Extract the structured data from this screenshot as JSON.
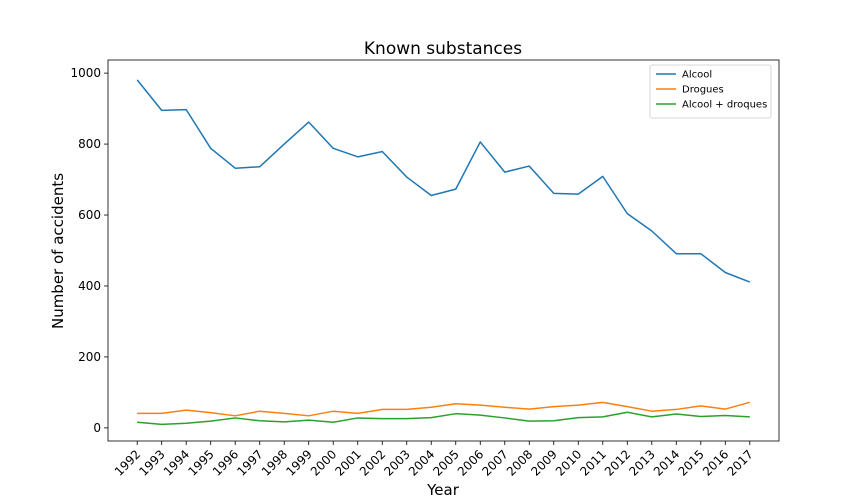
{
  "chart_data": {
    "type": "line",
    "title": "Known substances",
    "xlabel": "Year",
    "ylabel": "Number of accidents",
    "x": [
      1992,
      1993,
      1994,
      1995,
      1996,
      1997,
      1998,
      1999,
      2000,
      2001,
      2002,
      2003,
      2004,
      2005,
      2006,
      2007,
      2008,
      2009,
      2010,
      2011,
      2012,
      2013,
      2014,
      2015,
      2016,
      2017
    ],
    "ylim": [
      -37,
      1037
    ],
    "yticks": [
      0,
      200,
      400,
      600,
      800,
      1000
    ],
    "grid": false,
    "legend_position": "top-right",
    "series": [
      {
        "name": "Alcool",
        "color": "#1f77b4",
        "values": [
          981,
          895,
          897,
          788,
          732,
          736,
          800,
          862,
          788,
          764,
          779,
          707,
          655,
          673,
          806,
          721,
          738,
          661,
          659,
          709,
          604,
          555,
          491,
          491,
          438,
          411
        ]
      },
      {
        "name": "Drogues",
        "color": "#ff7f0e",
        "values": [
          41,
          41,
          50,
          43,
          34,
          47,
          41,
          34,
          47,
          41,
          52,
          52,
          58,
          68,
          64,
          58,
          53,
          60,
          64,
          72,
          60,
          47,
          52,
          62,
          53,
          72
        ]
      },
      {
        "name": "Alcool + droques",
        "color": "#2ca02c",
        "values": [
          16,
          10,
          13,
          19,
          28,
          20,
          17,
          22,
          16,
          28,
          26,
          26,
          29,
          40,
          36,
          28,
          19,
          20,
          29,
          31,
          44,
          31,
          39,
          32,
          35,
          31
        ]
      }
    ]
  }
}
